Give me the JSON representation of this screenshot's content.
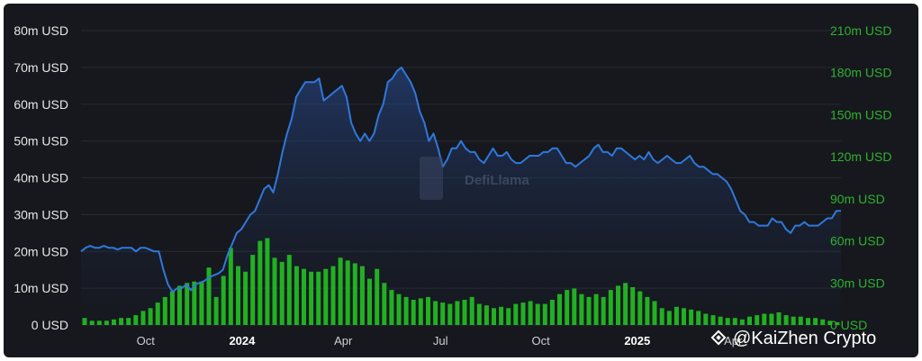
{
  "chart_data": {
    "type": "bar+line",
    "left_axis": {
      "ticks": [
        "0 USD",
        "10m USD",
        "20m USD",
        "30m USD",
        "40m USD",
        "50m USD",
        "60m USD",
        "70m USD",
        "80m USD"
      ],
      "range": [
        0,
        80
      ]
    },
    "right_axis": {
      "ticks": [
        "0 USD",
        "30m USD",
        "60m USD",
        "90m USD",
        "120m USD",
        "150m USD",
        "180m USD",
        "210m USD"
      ],
      "range": [
        0,
        210
      ]
    },
    "x_ticks": [
      {
        "label": "Oct",
        "bold": false,
        "pos": 0.085
      },
      {
        "label": "2024",
        "bold": true,
        "pos": 0.212
      },
      {
        "label": "Apr",
        "bold": false,
        "pos": 0.345
      },
      {
        "label": "Jul",
        "bold": false,
        "pos": 0.473
      },
      {
        "label": "Oct",
        "bold": false,
        "pos": 0.605
      },
      {
        "label": "2025",
        "bold": true,
        "pos": 0.732
      },
      {
        "label": "Apr",
        "bold": false,
        "pos": 0.858
      }
    ],
    "bar_color": "#22b022",
    "line_color": "#2f78dc",
    "line_values": [
      20,
      21,
      21.5,
      21,
      21,
      21.5,
      21,
      21,
      20.5,
      21,
      21,
      21,
      20,
      21,
      21,
      20.5,
      20,
      20,
      15,
      11,
      9,
      10,
      10,
      11,
      9.5,
      11,
      11.5,
      12,
      13,
      13.5,
      14,
      15,
      19,
      22,
      25,
      26,
      28,
      30,
      31,
      34,
      37,
      38,
      36,
      41,
      47,
      52,
      56,
      62,
      64,
      66,
      66,
      66,
      67,
      61,
      62,
      63,
      64,
      65,
      62,
      55,
      52,
      50,
      52,
      50,
      52,
      57,
      60,
      66,
      67,
      69,
      70,
      68,
      66,
      63,
      58,
      55,
      50,
      52,
      48,
      43,
      45,
      48,
      48,
      50,
      48,
      47,
      47,
      45,
      44,
      46,
      48,
      46,
      46,
      47,
      45,
      44,
      44,
      45,
      46,
      46,
      46,
      47,
      47,
      48,
      48,
      46,
      44,
      44,
      43,
      44,
      45,
      46,
      48,
      49,
      47,
      47,
      46,
      48,
      48,
      47,
      46,
      45,
      46,
      45,
      47,
      45,
      44,
      45,
      46,
      45,
      44,
      44,
      45,
      46,
      44,
      43,
      43,
      42,
      41,
      41,
      40,
      39,
      37,
      34,
      31,
      30,
      28,
      28,
      27,
      27,
      27,
      29,
      28,
      28,
      26,
      25,
      27,
      27,
      28,
      27,
      27,
      27,
      28,
      29,
      29,
      31,
      31
    ],
    "bar_values": [
      5,
      3,
      3,
      3,
      4,
      5,
      5,
      7,
      10,
      12,
      16,
      20,
      24,
      28,
      30,
      31,
      31,
      41,
      20,
      35,
      55,
      42,
      38,
      50,
      60,
      62,
      48,
      45,
      50,
      42,
      40,
      38,
      38,
      40,
      42,
      48,
      46,
      44,
      42,
      33,
      40,
      30,
      25,
      22,
      20,
      18,
      19,
      20,
      17,
      16,
      15,
      17,
      18,
      20,
      15,
      14,
      12,
      13,
      12,
      15,
      16,
      17,
      15,
      15,
      18,
      22,
      25,
      26,
      22,
      20,
      22,
      20,
      25,
      28,
      30,
      27,
      24,
      20,
      17,
      12,
      10,
      13,
      12,
      11,
      10,
      8,
      7,
      6,
      5,
      5,
      4,
      6,
      7,
      8,
      8,
      9,
      7,
      6,
      6,
      5,
      5,
      4,
      3,
      2
    ]
  },
  "watermark": {
    "text": "DefiLlama"
  },
  "credit": {
    "text": "@KaiZhen Crypto"
  }
}
